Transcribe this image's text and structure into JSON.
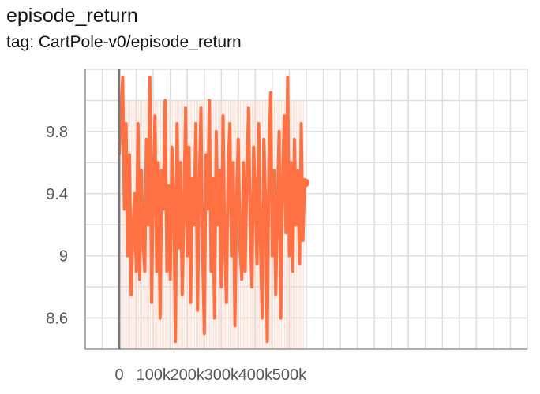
{
  "header": {
    "title": "episode_return",
    "subtitle": "tag: CartPole-v0/episode_return"
  },
  "chart_data": {
    "type": "line",
    "title": "episode_return",
    "subtitle": "tag: CartPole-v0/episode_return",
    "xlabel": "",
    "ylabel": "",
    "x_ticks": [
      0,
      100000,
      200000,
      300000,
      400000,
      500000
    ],
    "x_tick_labels": [
      "0",
      "100k",
      "200k",
      "300k",
      "400k",
      "500k"
    ],
    "y_ticks": [
      8.6,
      9,
      9.4,
      9.8
    ],
    "y_tick_labels": [
      "8.6",
      "9",
      "9.4",
      "9.8"
    ],
    "xlim": [
      -100000,
      1200000
    ],
    "ylim": [
      8.4,
      10.2
    ],
    "grid": true,
    "legend": "none",
    "last_point": {
      "x": 545000,
      "y": 9.47
    },
    "colors": {
      "smoothed": "#ff7043",
      "raw": "#ffd3c4",
      "grid": "#dddddd",
      "axis": "#999999"
    },
    "series": [
      {
        "role": "smoothed",
        "x": [
          0,
          10000,
          15000,
          20000,
          25000,
          30000,
          35000,
          40000,
          45000,
          50000,
          55000,
          60000,
          65000,
          70000,
          75000,
          80000,
          85000,
          90000,
          95000,
          100000,
          105000,
          110000,
          115000,
          120000,
          125000,
          130000,
          135000,
          140000,
          145000,
          150000,
          155000,
          160000,
          165000,
          170000,
          175000,
          180000,
          185000,
          190000,
          195000,
          200000,
          205000,
          210000,
          215000,
          220000,
          225000,
          230000,
          235000,
          240000,
          245000,
          250000,
          255000,
          260000,
          265000,
          270000,
          275000,
          280000,
          285000,
          290000,
          295000,
          300000,
          305000,
          310000,
          315000,
          320000,
          325000,
          330000,
          335000,
          340000,
          345000,
          350000,
          355000,
          360000,
          365000,
          370000,
          375000,
          380000,
          385000,
          390000,
          395000,
          400000,
          405000,
          410000,
          415000,
          420000,
          425000,
          430000,
          435000,
          440000,
          445000,
          450000,
          455000,
          460000,
          465000,
          470000,
          475000,
          480000,
          485000,
          490000,
          495000,
          500000,
          505000,
          510000,
          515000,
          520000,
          525000,
          530000,
          535000,
          540000,
          545000
        ],
        "values": [
          9.65,
          10.15,
          9.3,
          9.85,
          9.0,
          9.65,
          8.75,
          9.15,
          9.4,
          8.9,
          9.85,
          8.85,
          9.55,
          9.1,
          8.9,
          9.75,
          9.2,
          10.15,
          8.7,
          9.45,
          9.9,
          8.9,
          9.6,
          8.6,
          9.55,
          9.3,
          10.0,
          8.9,
          9.45,
          8.85,
          9.7,
          9.4,
          8.45,
          9.85,
          9.05,
          9.6,
          8.75,
          9.3,
          9.95,
          9.0,
          9.7,
          8.7,
          9.5,
          9.2,
          9.85,
          8.65,
          9.4,
          9.95,
          9.05,
          8.5,
          9.65,
          9.3,
          10.0,
          8.9,
          9.5,
          8.6,
          9.8,
          9.2,
          9.55,
          8.8,
          9.9,
          9.1,
          8.7,
          9.55,
          9.85,
          9.0,
          9.6,
          8.55,
          9.35,
          9.75,
          9.05,
          8.85,
          9.6,
          8.9,
          9.5,
          9.95,
          9.2,
          8.8,
          9.7,
          9.4,
          8.95,
          9.85,
          9.1,
          8.6,
          9.75,
          9.35,
          8.45,
          9.6,
          10.05,
          9.0,
          9.55,
          8.75,
          9.3,
          9.8,
          8.6,
          9.45,
          9.9,
          9.15,
          10.15,
          9.0,
          9.6,
          8.9,
          9.75,
          9.2,
          9.55,
          8.95,
          9.85,
          9.1,
          9.47
        ]
      }
    ]
  }
}
